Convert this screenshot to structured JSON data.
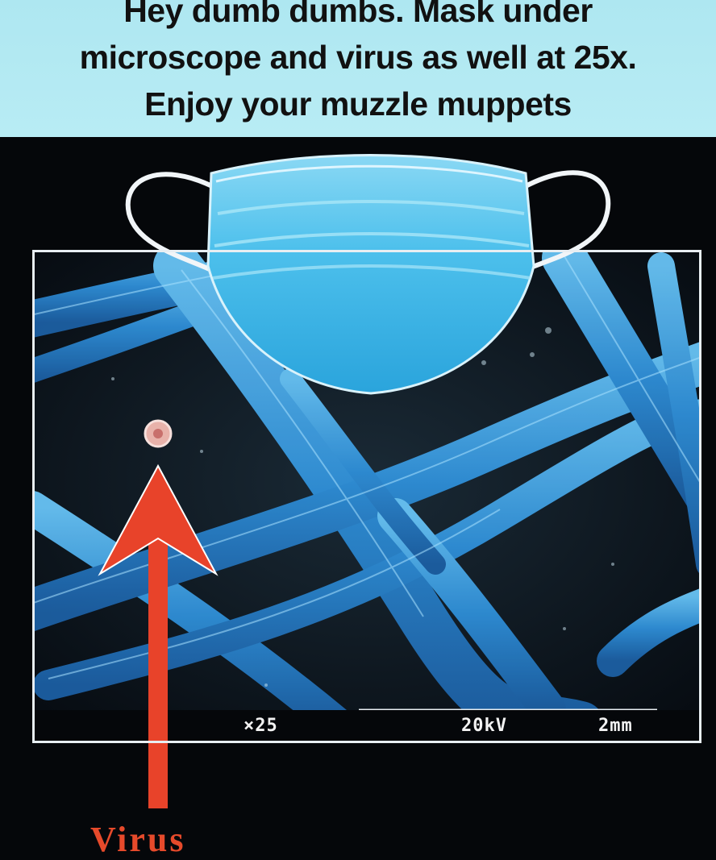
{
  "caption": {
    "line1": "Hey dumb dumbs. Mask under",
    "line2": "microscope and virus as well at 25x.",
    "line3": "Enjoy your muzzle muppets"
  },
  "micrograph": {
    "magnification": "×25",
    "voltage": "20kV",
    "scale": "2mm"
  },
  "annotation": {
    "label": "Virus",
    "arrow_color": "#e8432a"
  },
  "colors": {
    "caption_bg": "#aee7f1",
    "fiber": "#3a9fe0",
    "mask": "#4fc3ec"
  }
}
